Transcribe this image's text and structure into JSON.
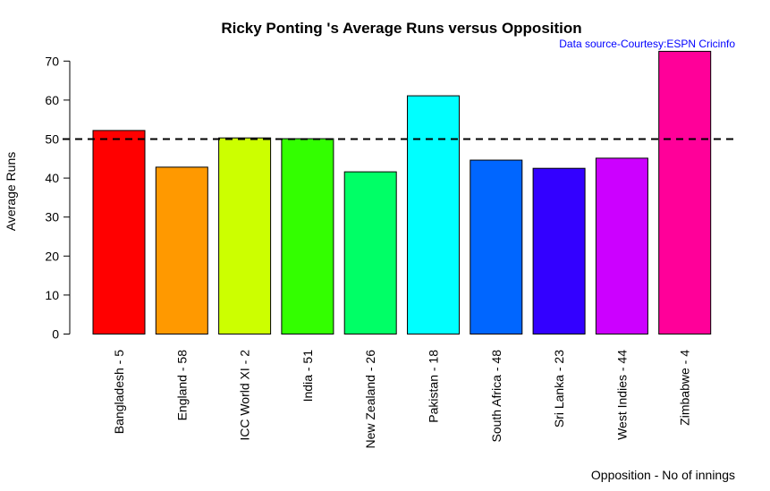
{
  "chart_data": {
    "type": "bar",
    "title": "Ricky Ponting 's Average Runs versus Opposition",
    "source_note": "Data source-Courtesy:ESPN Cricinfo",
    "xlabel": "Opposition - No of innings",
    "ylabel": "Average Runs",
    "ylim": [
      0,
      70
    ],
    "yticks": [
      0,
      10,
      20,
      30,
      40,
      50,
      60,
      70
    ],
    "categories": [
      "Bangladesh - 5",
      "England - 58",
      "ICC World XI - 2",
      "India - 51",
      "New Zealand - 26",
      "Pakistan - 18",
      "South Africa - 48",
      "Sri Lanka - 23",
      "West Indies - 44",
      "Zimbabwe - 4"
    ],
    "values": [
      52.2,
      42.8,
      50.3,
      50.1,
      41.6,
      61.1,
      44.6,
      42.5,
      45.1,
      72.5
    ],
    "colors": [
      "#ff0000",
      "#ff9900",
      "#ccff00",
      "#33ff00",
      "#00ff66",
      "#00ffff",
      "#0066ff",
      "#3300ff",
      "#cc00ff",
      "#ff0099"
    ],
    "reference_line": {
      "value": 50,
      "style": "dashed",
      "color": "#000000"
    },
    "grid": false,
    "legend": "none"
  }
}
